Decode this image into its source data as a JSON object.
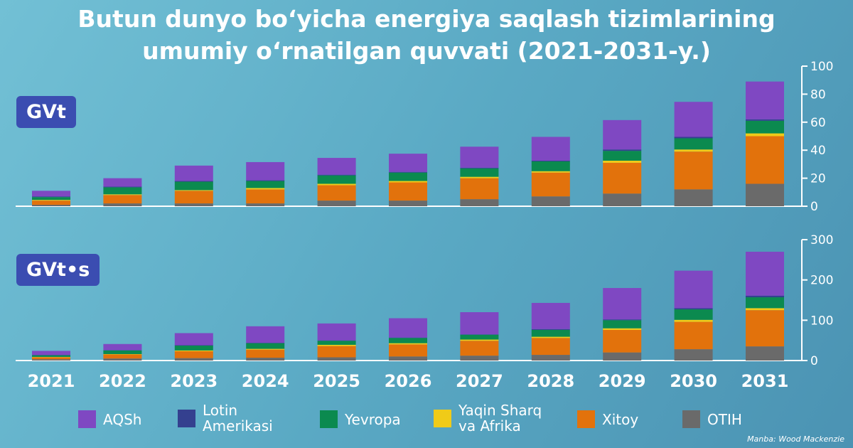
{
  "title_line1": "Butun dunyo bo‘yicha energiya saqlash tizimlarining",
  "title_line2": "umumiy o‘rnatilgan quvvati (2021-2031-y.)",
  "unit_top": "GVt",
  "unit_bottom": "GVt•s",
  "source": "Manba: Wood Mackenzie",
  "colors": {
    "AQSh": "#7f48c2",
    "Lotin Amerikasi": "#34408f",
    "Yevropa": "#0b8a4f",
    "Yaqin Sharq va Afrika": "#f0cb18",
    "Xitoy": "#e2720c",
    "OTIH": "#6a6a6a"
  },
  "legend": [
    {
      "label": "AQSh",
      "color": "#7f48c2"
    },
    {
      "label": "Lotin\nAmerikasi",
      "color": "#34408f"
    },
    {
      "label": "Yevropa",
      "color": "#0b8a4f"
    },
    {
      "label": "Yaqin Sharq\nva Afrika",
      "color": "#f0cb18"
    },
    {
      "label": "Xitoy",
      "color": "#e2720c"
    },
    {
      "label": "OTIH",
      "color": "#6a6a6a"
    }
  ],
  "chart_data": [
    {
      "type": "bar",
      "stacked": true,
      "unit": "GVt",
      "categories": [
        "2021",
        "2022",
        "2023",
        "2024",
        "2025",
        "2026",
        "2027",
        "2028",
        "2029",
        "2030",
        "2031"
      ],
      "ylim": [
        0,
        100
      ],
      "yticks": [
        0,
        20,
        40,
        60,
        80,
        100
      ],
      "series": [
        {
          "name": "OTIH",
          "values": [
            1,
            2,
            2,
            2,
            4,
            4,
            5,
            7,
            9,
            12,
            16
          ]
        },
        {
          "name": "Xitoy",
          "values": [
            3,
            6,
            9,
            10,
            11,
            13,
            15,
            17,
            22,
            27,
            34
          ]
        },
        {
          "name": "Yaqin Sharq va Afrika",
          "values": [
            0.5,
            0.5,
            0.5,
            1,
            1,
            1,
            1,
            1,
            1.5,
            1.5,
            2
          ]
        },
        {
          "name": "Yevropa",
          "values": [
            2,
            5,
            6,
            5,
            6,
            6,
            6,
            7,
            7,
            8,
            9
          ]
        },
        {
          "name": "Lotin Amerikasi",
          "values": [
            0.5,
            0.5,
            0.5,
            0.5,
            0.5,
            0.5,
            0.5,
            0.5,
            1,
            1,
            1
          ]
        },
        {
          "name": "AQSh",
          "values": [
            4,
            6,
            11,
            13,
            12,
            13,
            15,
            17,
            21,
            25,
            27
          ]
        }
      ]
    },
    {
      "type": "bar",
      "stacked": true,
      "unit": "GVt•s",
      "categories": [
        "2021",
        "2022",
        "2023",
        "2024",
        "2025",
        "2026",
        "2027",
        "2028",
        "2029",
        "2030",
        "2031"
      ],
      "ylim": [
        0,
        300
      ],
      "yticks": [
        0,
        100,
        200,
        300
      ],
      "series": [
        {
          "name": "OTIH",
          "values": [
            3,
            5,
            6,
            7,
            8,
            10,
            12,
            14,
            20,
            28,
            35
          ]
        },
        {
          "name": "Xitoy",
          "values": [
            5,
            10,
            17,
            20,
            28,
            30,
            37,
            42,
            56,
            68,
            90
          ]
        },
        {
          "name": "Yaqin Sharq va Afrika",
          "values": [
            1,
            1,
            2,
            2,
            3,
            3,
            3,
            3,
            4,
            5,
            5
          ]
        },
        {
          "name": "Yevropa",
          "values": [
            4,
            9,
            12,
            14,
            10,
            13,
            12,
            17,
            20,
            26,
            27
          ]
        },
        {
          "name": "Lotin Amerikasi",
          "values": [
            1,
            1,
            1,
            1,
            1,
            1,
            1,
            2,
            2,
            3,
            4
          ]
        },
        {
          "name": "AQSh",
          "values": [
            10,
            15,
            30,
            41,
            42,
            48,
            55,
            65,
            78,
            93,
            109
          ]
        }
      ]
    }
  ]
}
